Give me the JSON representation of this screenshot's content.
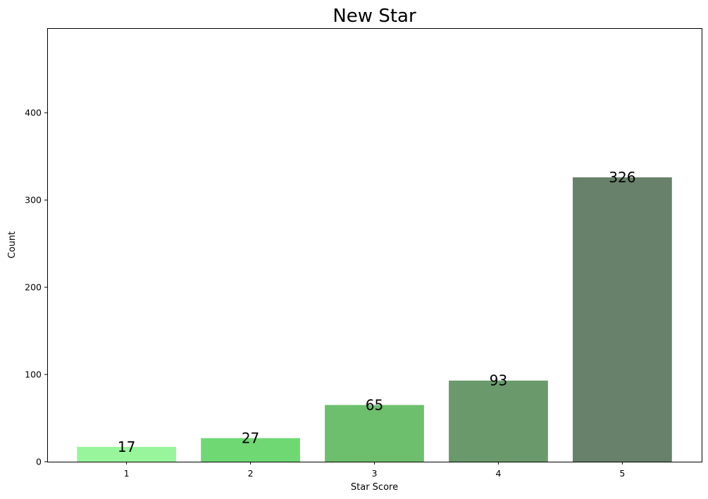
{
  "chart_data": {
    "type": "bar",
    "title": "New Star",
    "xlabel": "Star Score",
    "ylabel": "Count",
    "categories": [
      "1",
      "2",
      "3",
      "4",
      "5"
    ],
    "values": [
      17,
      27,
      65,
      93,
      326
    ],
    "data_labels": [
      "17",
      "27",
      "65",
      "93",
      "326"
    ],
    "bar_colors": [
      "#98f59c",
      "#6fd873",
      "#6dbe6d",
      "#6a9a6b",
      "#68816a"
    ],
    "ylim": [
      0,
      497
    ],
    "yticks": [
      0,
      100,
      200,
      300,
      400
    ],
    "ytick_labels": [
      "0",
      "100",
      "200",
      "300",
      "400"
    ],
    "grid": false,
    "legend": "none"
  }
}
